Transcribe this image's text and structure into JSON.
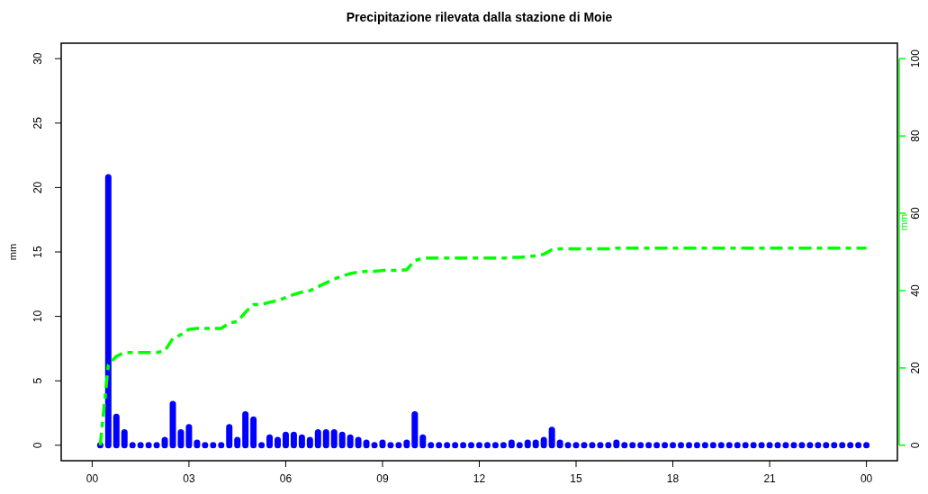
{
  "chart_data": {
    "type": "bar",
    "title": "Precipitazione rilevata dalla stazione di Moie",
    "ylabel": "mm",
    "y2label": "mm",
    "x": [
      0.25,
      0.5,
      0.75,
      1,
      1.25,
      1.5,
      1.75,
      2,
      2.25,
      2.5,
      2.75,
      3,
      3.25,
      3.5,
      3.75,
      4,
      4.25,
      4.5,
      4.75,
      5,
      5.25,
      5.5,
      5.75,
      6,
      6.25,
      6.5,
      6.75,
      7,
      7.25,
      7.5,
      7.75,
      8,
      8.25,
      8.5,
      8.75,
      9,
      9.25,
      9.5,
      9.75,
      10,
      10.25,
      10.5,
      10.75,
      11,
      11.25,
      11.5,
      11.75,
      12,
      12.25,
      12.5,
      12.75,
      13,
      13.25,
      13.5,
      13.75,
      14,
      14.25,
      14.5,
      14.75,
      15,
      15.25,
      15.5,
      15.75,
      16,
      16.25,
      16.5,
      16.75,
      17,
      17.25,
      17.5,
      17.75,
      18,
      18.25,
      18.5,
      18.75,
      19,
      19.25,
      19.5,
      19.75,
      20,
      20.25,
      20.5,
      20.75,
      21,
      21.25,
      21.5,
      21.75,
      22,
      22.25,
      22.5,
      22.75,
      23,
      23.25,
      23.5,
      23.75,
      24
    ],
    "series": [
      {
        "color": "#0000ff",
        "values": [
          0,
          20.8,
          2.2,
          1.0,
          0,
          0,
          0,
          0,
          0.4,
          3.2,
          1.0,
          1.4,
          0.2,
          0,
          0,
          0,
          1.4,
          0.4,
          2.4,
          2.0,
          0,
          0.6,
          0.4,
          0.8,
          0.8,
          0.6,
          0.4,
          1.0,
          1.0,
          1.0,
          0.8,
          0.6,
          0.4,
          0.2,
          0,
          0.2,
          0,
          0,
          0.2,
          2.4,
          0.6,
          0,
          0,
          0,
          0,
          0,
          0,
          0,
          0,
          0,
          0,
          0.2,
          0,
          0.2,
          0.2,
          0.4,
          1.2,
          0.2,
          0,
          0,
          0,
          0,
          0,
          0,
          0.2,
          0,
          0,
          0,
          0,
          0,
          0,
          0,
          0,
          0,
          0,
          0,
          0,
          0,
          0,
          0,
          0,
          0,
          0,
          0,
          0,
          0,
          0,
          0,
          0,
          0,
          0,
          0,
          0,
          0,
          0,
          0
        ]
      },
      {
        "type": "line",
        "axis": "y2",
        "color": "#00ff00",
        "line_style": "dashed",
        "values": [
          0,
          20.8,
          23.0,
          24.0,
          24.0,
          24.0,
          24.0,
          24.0,
          24.4,
          27.6,
          28.6,
          30.0,
          30.2,
          30.2,
          30.2,
          30.2,
          31.6,
          32.0,
          34.4,
          36.4,
          36.4,
          37.0,
          37.4,
          38.2,
          39.0,
          39.6,
          40.0,
          41.0,
          42.0,
          43.0,
          43.8,
          44.4,
          44.8,
          45.0,
          45.0,
          45.2,
          45.2,
          45.2,
          45.4,
          47.8,
          48.4,
          48.4,
          48.4,
          48.4,
          48.4,
          48.4,
          48.4,
          48.4,
          48.4,
          48.4,
          48.4,
          48.6,
          48.6,
          48.8,
          49.0,
          49.4,
          50.6,
          50.8,
          50.8,
          50.8,
          50.8,
          50.8,
          50.8,
          50.8,
          51.0,
          51.0,
          51.0,
          51.0,
          51.0,
          51.0,
          51.0,
          51.0,
          51.0,
          51.0,
          51.0,
          51.0,
          51.0,
          51.0,
          51.0,
          51.0,
          51.0,
          51.0,
          51.0,
          51.0,
          51.0,
          51.0,
          51.0,
          51.0,
          51.0,
          51.0,
          51.0,
          51.0,
          51.0,
          51.0,
          51.0,
          51.0
        ]
      }
    ],
    "xlim": [
      -0.96,
      24.96
    ],
    "xticks": [
      {
        "value": 0,
        "label": "00"
      },
      {
        "value": 3,
        "label": "03"
      },
      {
        "value": 6,
        "label": "06"
      },
      {
        "value": 9,
        "label": "09"
      },
      {
        "value": 12,
        "label": "12"
      },
      {
        "value": 15,
        "label": "15"
      },
      {
        "value": 18,
        "label": "18"
      },
      {
        "value": 21,
        "label": "21"
      },
      {
        "value": 24,
        "label": "00"
      }
    ],
    "ylim": [
      -1.2,
      31.2
    ],
    "yticks": [
      0,
      5,
      10,
      15,
      20,
      25,
      30
    ],
    "y2lim": [
      -4,
      104
    ],
    "y2ticks": [
      0,
      20,
      40,
      60,
      80,
      100
    ],
    "grid": false
  }
}
